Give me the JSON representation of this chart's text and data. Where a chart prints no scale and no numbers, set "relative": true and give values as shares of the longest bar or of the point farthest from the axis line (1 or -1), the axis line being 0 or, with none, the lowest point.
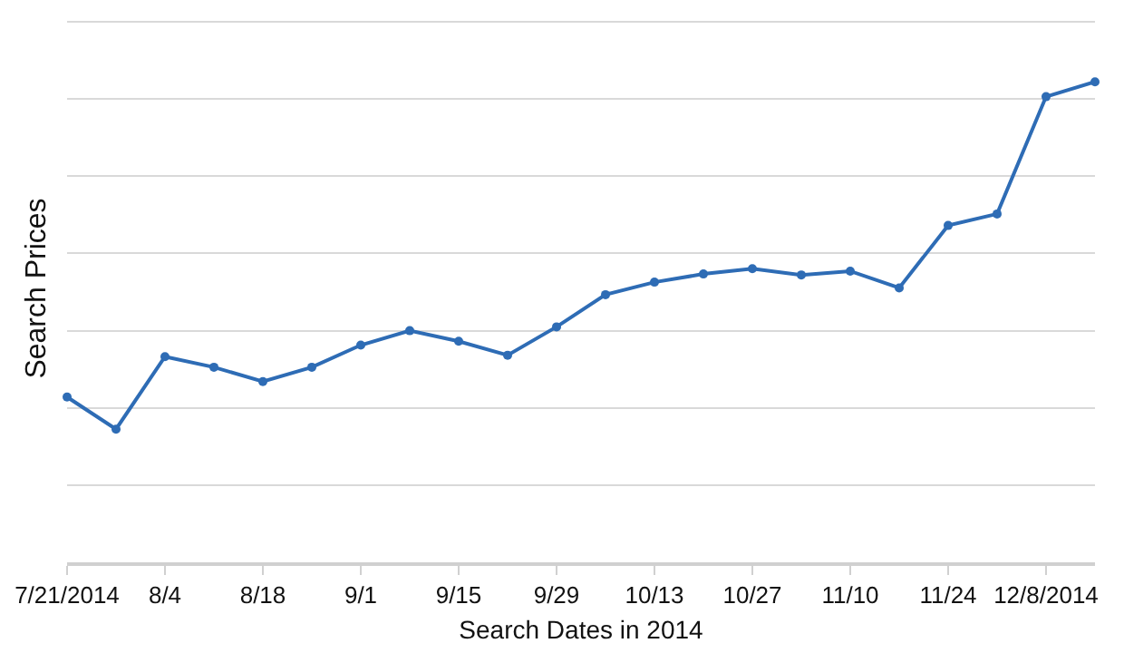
{
  "chart_data": {
    "type": "line",
    "relative": true,
    "xlabel": "Search Dates in 2014",
    "ylabel": "Search Prices",
    "x": [
      "2014-07-21",
      "2014-07-28",
      "2014-08-04",
      "2014-08-11",
      "2014-08-18",
      "2014-08-25",
      "2014-09-01",
      "2014-09-08",
      "2014-09-15",
      "2014-09-22",
      "2014-09-29",
      "2014-10-06",
      "2014-10-13",
      "2014-10-20",
      "2014-10-27",
      "2014-11-03",
      "2014-11-10",
      "2014-11-17",
      "2014-11-24",
      "2014-12-01",
      "2014-12-08",
      "2014-12-15"
    ],
    "series": [
      {
        "color": "#2e6cb5",
        "values": [
          0.344,
          0.277,
          0.428,
          0.406,
          0.376,
          0.406,
          0.452,
          0.482,
          0.46,
          0.431,
          0.49,
          0.557,
          0.583,
          0.6,
          0.611,
          0.598,
          0.606,
          0.571,
          0.701,
          0.725,
          0.969,
          1
        ]
      }
    ],
    "xlim": [
      "2014-07-21",
      "2014-12-15"
    ],
    "xticks": [
      {
        "value": "2014-07-21",
        "label": "7/21/2014"
      },
      {
        "value": "2014-08-04",
        "label": "8/4"
      },
      {
        "value": "2014-08-18",
        "label": "8/18"
      },
      {
        "value": "2014-09-01",
        "label": "9/1"
      },
      {
        "value": "2014-09-15",
        "label": "9/15"
      },
      {
        "value": "2014-09-29",
        "label": "9/29"
      },
      {
        "value": "2014-10-13",
        "label": "10/13"
      },
      {
        "value": "2014-10-27",
        "label": "10/27"
      },
      {
        "value": "2014-11-10",
        "label": "11/10"
      },
      {
        "value": "2014-11-24",
        "label": "11/24"
      },
      {
        "value": "2014-12-08",
        "label": "12/8/2014"
      }
    ],
    "grid": "y",
    "marker": "circle",
    "line_style": "solid",
    "tick_labels": "x"
  }
}
